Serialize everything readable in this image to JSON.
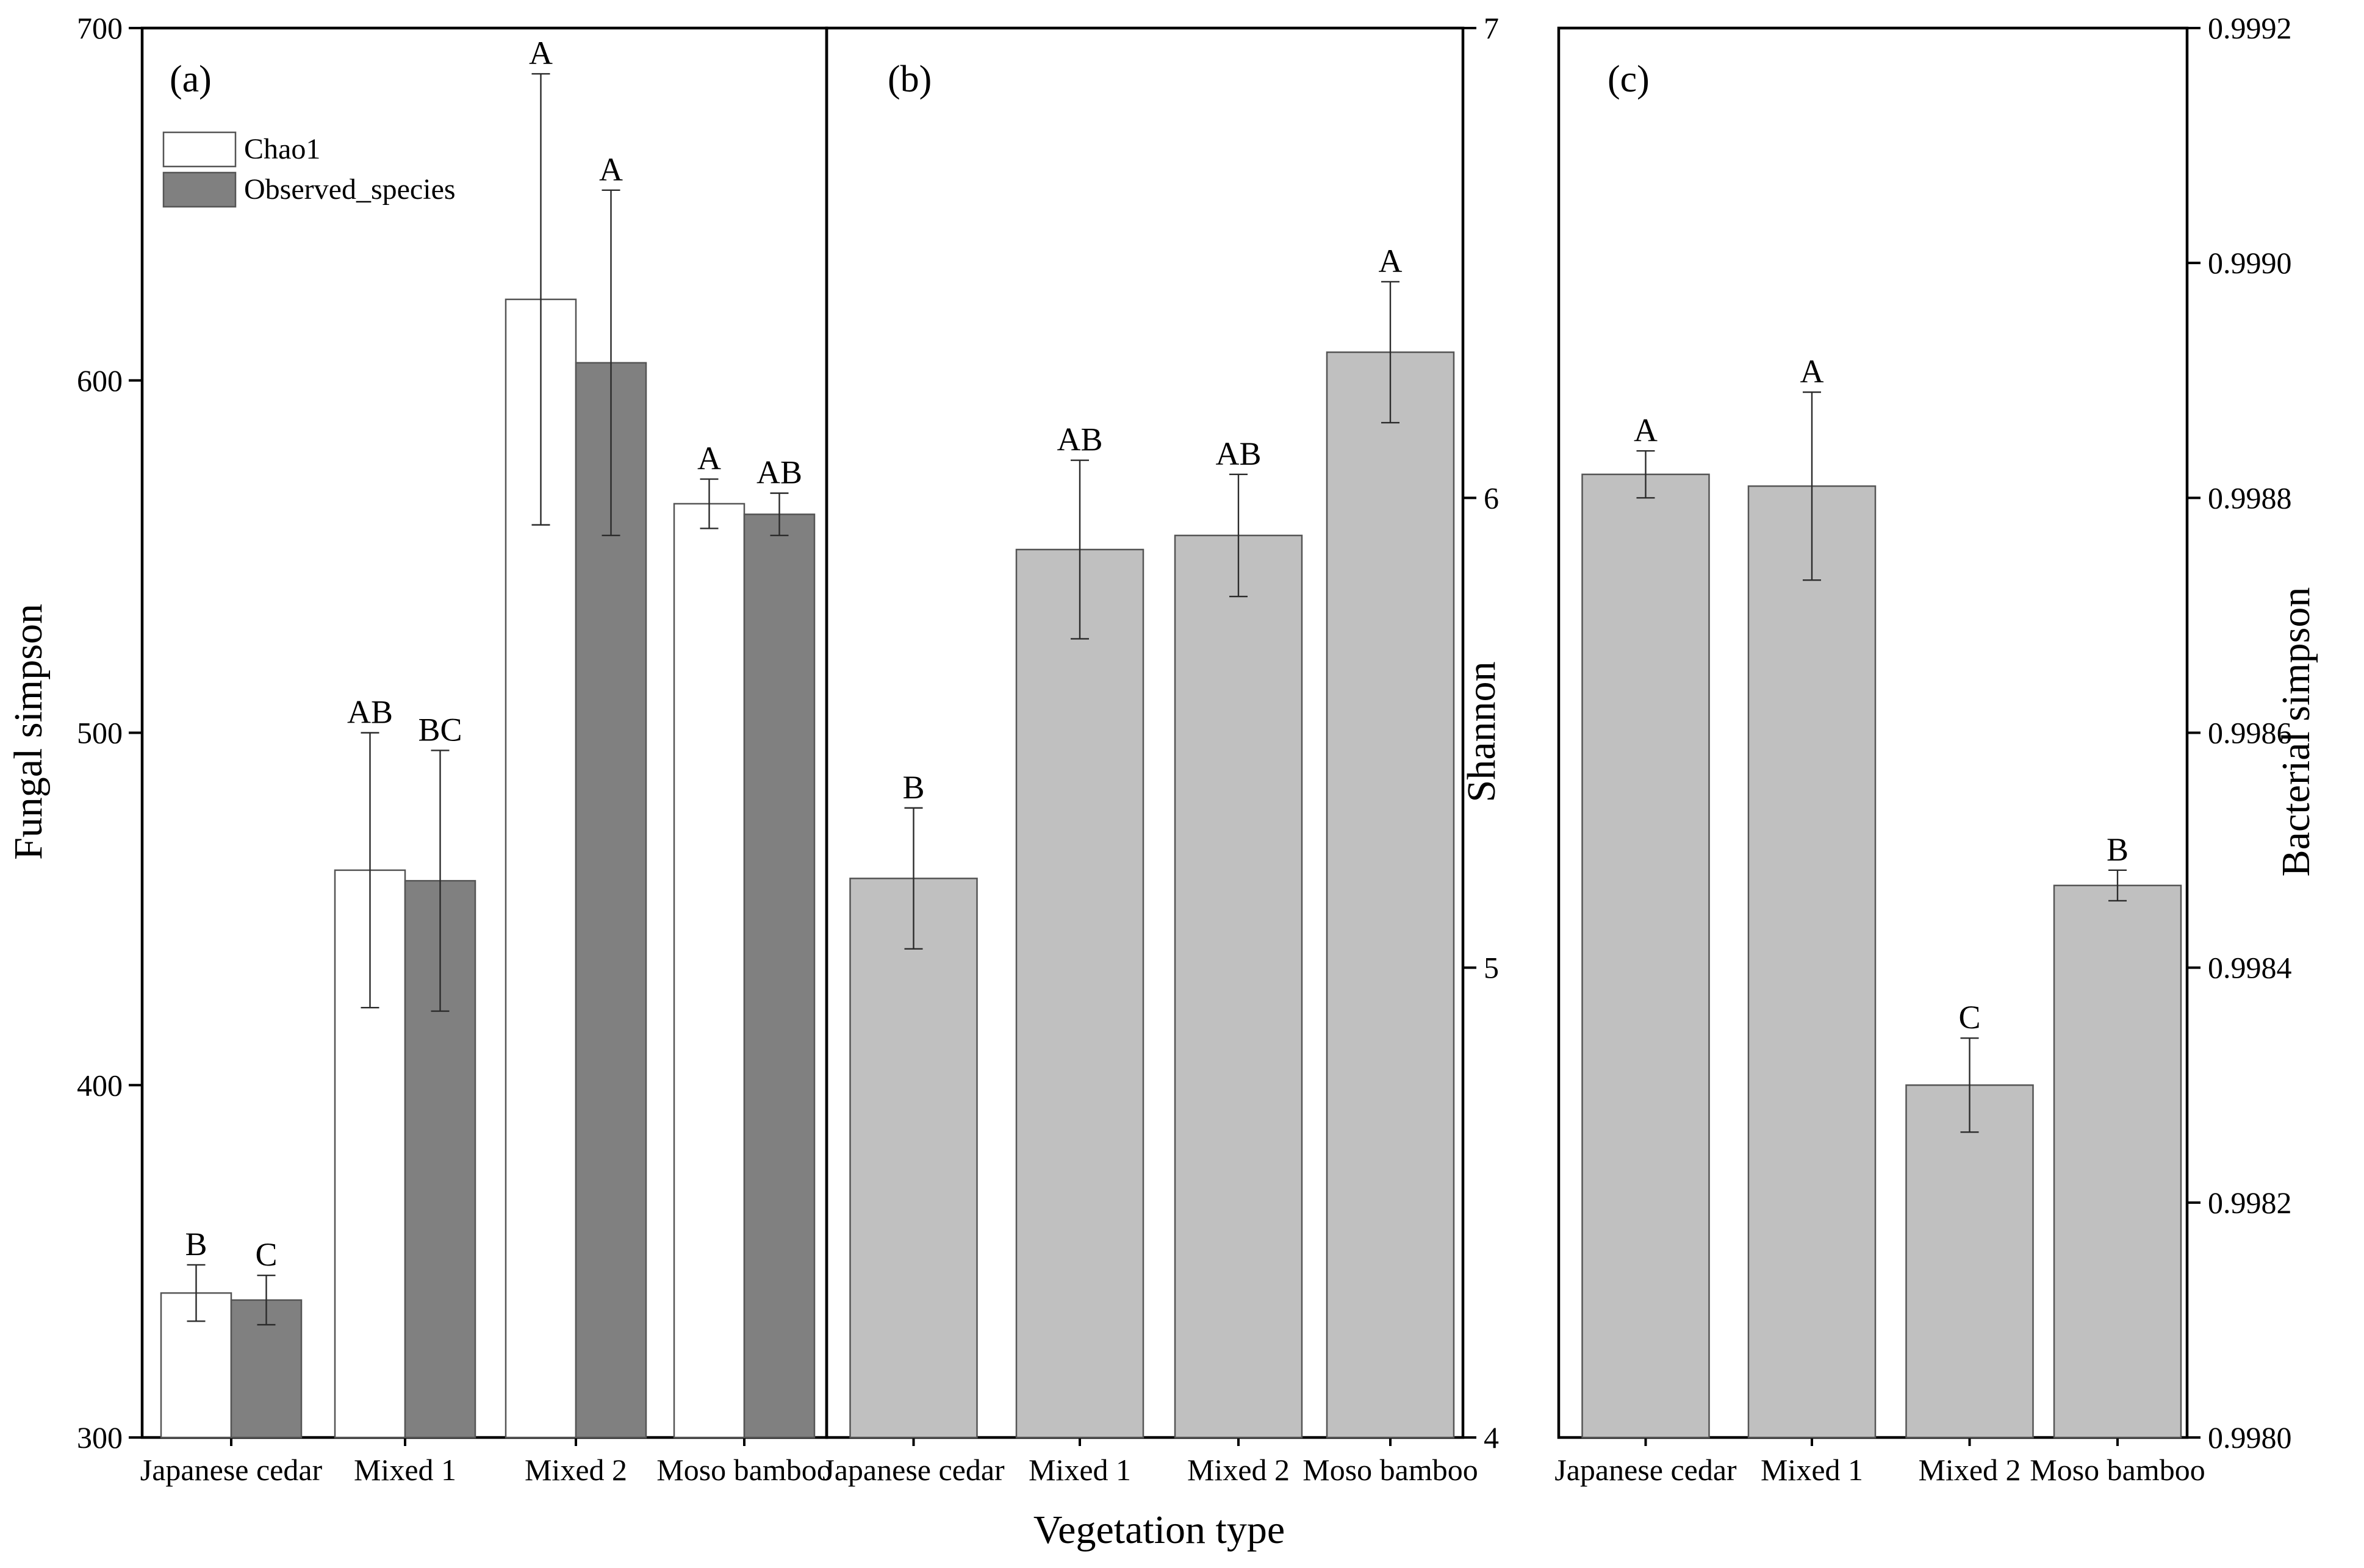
{
  "colors": {
    "chao1": "#ffffff",
    "observed": "#808080",
    "single": "#c0c0c0",
    "edge": "#555555",
    "axis": "#000000"
  },
  "figure": {
    "xlabel": "Vegetation type"
  },
  "legend": {
    "items": [
      {
        "label": "Chao1",
        "color": "#ffffff"
      },
      {
        "label": "Observed_species",
        "color": "#808080"
      }
    ]
  },
  "chart_data": [
    {
      "type": "bar",
      "panel": "(a)",
      "ylabel": "Fungal simpson",
      "ylim": [
        300,
        700
      ],
      "yticks": [
        300,
        400,
        500,
        600,
        700
      ],
      "ytick_labels": [
        "300",
        "400",
        "500",
        "600",
        "700"
      ],
      "y_axis_side": "left",
      "categories": [
        "Japanese cedar",
        "Mixed 1",
        "Mixed 2",
        "Moso bamboo"
      ],
      "series": [
        {
          "name": "Chao1",
          "values": [
            341,
            461,
            623,
            565
          ],
          "errors": [
            8,
            39,
            64,
            7
          ],
          "letters": [
            "B",
            "AB",
            "A",
            "A"
          ]
        },
        {
          "name": "Observed_species",
          "values": [
            339,
            458,
            605,
            562
          ],
          "errors": [
            7,
            37,
            49,
            6
          ],
          "letters": [
            "C",
            "BC",
            "A",
            "AB"
          ]
        }
      ]
    },
    {
      "type": "bar",
      "panel": "(b)",
      "ylabel": "Shannon",
      "ylim": [
        4,
        7
      ],
      "yticks": [
        4,
        5,
        6,
        7
      ],
      "ytick_labels": [
        "4",
        "5",
        "6",
        "7"
      ],
      "y_axis_side": "right",
      "categories": [
        "Japanese cedar",
        "Mixed 1",
        "Mixed 2",
        "Moso bamboo"
      ],
      "series": [
        {
          "name": "Shannon",
          "values": [
            5.19,
            5.89,
            5.92,
            6.31
          ],
          "errors": [
            0.15,
            0.19,
            0.13,
            0.15
          ],
          "letters": [
            "B",
            "AB",
            "AB",
            "A"
          ]
        }
      ]
    },
    {
      "type": "bar",
      "panel": "(c)",
      "ylabel": "Bacterial  simpson",
      "ylim": [
        0.998,
        0.9992
      ],
      "yticks": [
        0.998,
        0.9982,
        0.9984,
        0.9986,
        0.9988,
        0.999,
        0.9992
      ],
      "ytick_labels": [
        "0.9980",
        "0.9982",
        "0.9984",
        "0.9986",
        "0.9988",
        "0.9990",
        "0.9992"
      ],
      "y_axis_side": "right",
      "categories": [
        "Japanese cedar",
        "Mixed 1",
        "Mixed 2",
        "Moso bamboo"
      ],
      "series": [
        {
          "name": "Bacterial simpson",
          "values": [
            0.99882,
            0.99881,
            0.9983,
            0.99847
          ],
          "errors": [
            2e-05,
            8e-05,
            4e-05,
            1.3e-05
          ],
          "letters": [
            "A",
            "A",
            "C",
            "B"
          ]
        }
      ]
    }
  ]
}
